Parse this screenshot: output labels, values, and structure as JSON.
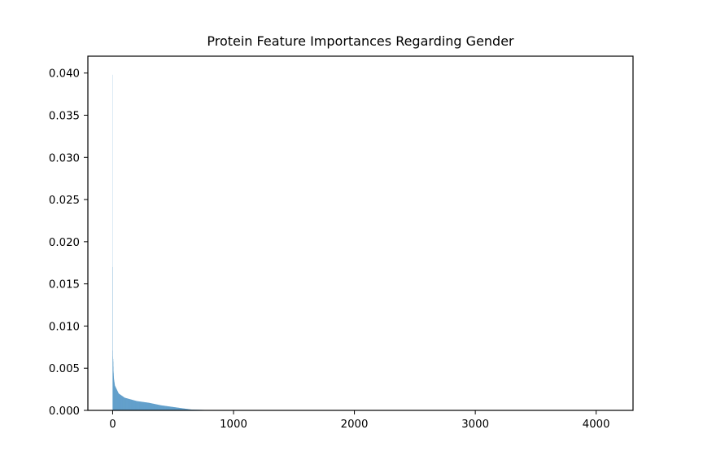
{
  "chart_data": {
    "type": "bar",
    "title": "Protein Feature Importances Regarding Gender",
    "xlabel": "",
    "ylabel": "",
    "xlim": [
      -205,
      4305
    ],
    "ylim": [
      0,
      0.042
    ],
    "x_ticks": [
      0,
      1000,
      2000,
      3000,
      4000
    ],
    "x_tick_labels": [
      "0",
      "1000",
      "2000",
      "3000",
      "4000"
    ],
    "y_ticks": [
      0,
      0.005,
      0.01,
      0.015,
      0.02,
      0.025,
      0.03,
      0.035,
      0.04
    ],
    "y_tick_labels": [
      "0.000",
      "0.005",
      "0.010",
      "0.015",
      "0.020",
      "0.025",
      "0.030",
      "0.035",
      "0.040"
    ],
    "grid": false,
    "bar_color": "#1f77b4",
    "n_features": 4100,
    "values_top": [
      0.0398,
      0.017,
      0.0071,
      0.0064,
      0.0061,
      0.0058,
      0.0052,
      0.0046,
      0.0044,
      0.0041,
      0.0039,
      0.0037,
      0.0036,
      0.0035,
      0.0034,
      0.0033,
      0.0032,
      0.0031,
      0.003,
      0.0029
    ],
    "tail_curve": [
      {
        "x": 20,
        "y": 0.0029
      },
      {
        "x": 50,
        "y": 0.002
      },
      {
        "x": 100,
        "y": 0.0015
      },
      {
        "x": 150,
        "y": 0.0013
      },
      {
        "x": 200,
        "y": 0.0011
      },
      {
        "x": 300,
        "y": 0.0009
      },
      {
        "x": 400,
        "y": 0.0006
      },
      {
        "x": 500,
        "y": 0.0004
      },
      {
        "x": 600,
        "y": 0.0002
      },
      {
        "x": 650,
        "y": 0.0001
      },
      {
        "x": 800,
        "y": 3e-05
      },
      {
        "x": 1000,
        "y": 0.0
      },
      {
        "x": 4100,
        "y": 0.0
      }
    ]
  }
}
